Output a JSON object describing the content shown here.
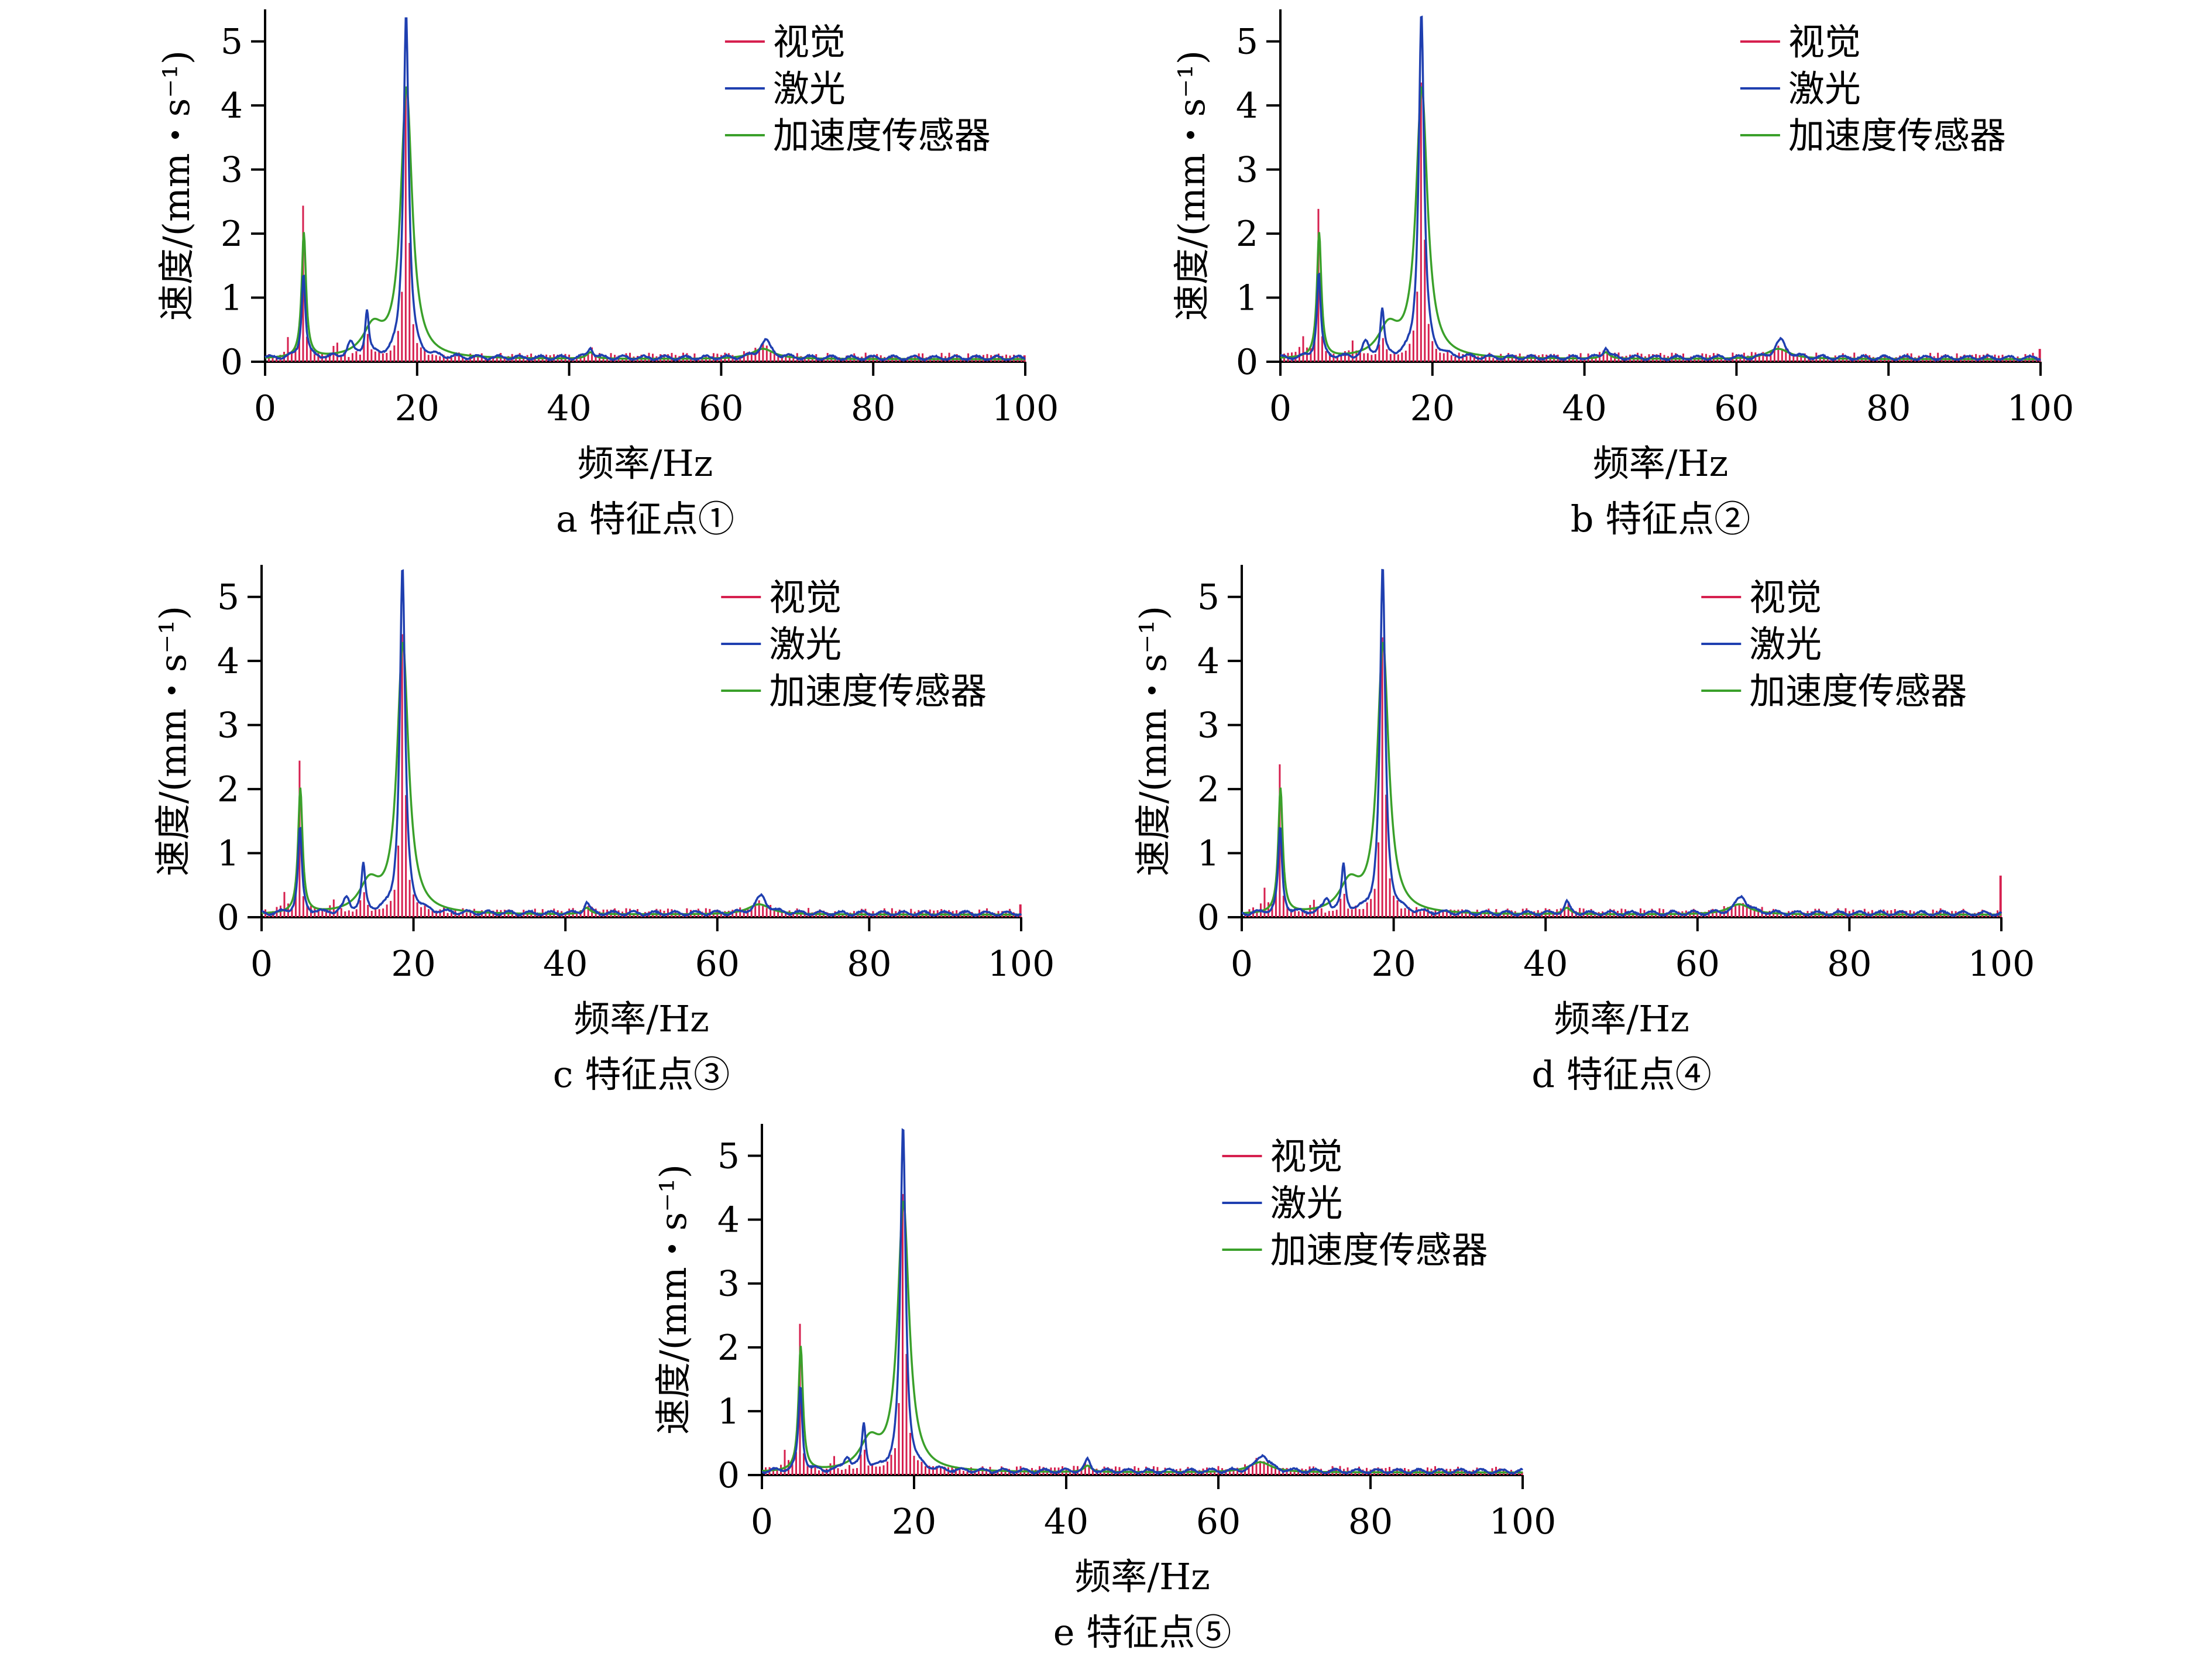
{
  "colors": {
    "vision": "#d6204f",
    "laser": "#1f3fb0",
    "accel": "#3aa02a",
    "axis": "#000000"
  },
  "chart_data": [
    {
      "id": "a",
      "caption": "a  特征点①",
      "type": "line",
      "xlabel": "频率/Hz",
      "ylabel": "速度/(mm・s⁻¹)",
      "xlim": [
        0,
        100
      ],
      "ylim": [
        0,
        5.5
      ],
      "xticks": [
        "0",
        "20",
        "40",
        "60",
        "80",
        "100"
      ],
      "yticks": [
        "0",
        "1",
        "2",
        "3",
        "4",
        "5"
      ],
      "legend_position": "top-right",
      "series": [
        {
          "name": "视觉"
        },
        {
          "name": "激光"
        },
        {
          "name": "加速度传感器"
        }
      ],
      "peaks": {
        "vision": 4.6,
        "laser": 5.4,
        "accel": 4.2,
        "end_bar": 0.1
      }
    },
    {
      "id": "b",
      "caption": "b  特征点②",
      "type": "line",
      "xlabel": "频率/Hz",
      "ylabel": "速度/(mm・s⁻¹)",
      "xlim": [
        0,
        100
      ],
      "ylim": [
        0,
        5.5
      ],
      "xticks": [
        "0",
        "20",
        "40",
        "60",
        "80",
        "100"
      ],
      "yticks": [
        "0",
        "1",
        "2",
        "3",
        "4",
        "5"
      ],
      "legend_position": "top-right",
      "series": [
        {
          "name": "视觉"
        },
        {
          "name": "激光"
        },
        {
          "name": "加速度传感器"
        }
      ],
      "peaks": {
        "vision": 4.7,
        "laser": 5.4,
        "accel": 4.2,
        "end_bar": 0.2
      }
    },
    {
      "id": "c",
      "caption": "c  特征点③",
      "type": "line",
      "xlabel": "频率/Hz",
      "ylabel": "速度/(mm・s⁻¹)",
      "xlim": [
        0,
        100
      ],
      "ylim": [
        0,
        5.5
      ],
      "xticks": [
        "0",
        "20",
        "40",
        "60",
        "80",
        "100"
      ],
      "yticks": [
        "0",
        "1",
        "2",
        "3",
        "4",
        "5"
      ],
      "legend_position": "top-right",
      "series": [
        {
          "name": "视觉"
        },
        {
          "name": "激光"
        },
        {
          "name": "加速度传感器"
        }
      ],
      "peaks": {
        "vision": 4.7,
        "laser": 5.4,
        "accel": 4.2,
        "end_bar": 0.2
      }
    },
    {
      "id": "d",
      "caption": "d  特征点④",
      "type": "line",
      "xlabel": "频率/Hz",
      "ylabel": "速度/(mm・s⁻¹)",
      "xlim": [
        0,
        100
      ],
      "ylim": [
        0,
        5.5
      ],
      "xticks": [
        "0",
        "20",
        "40",
        "60",
        "80",
        "100"
      ],
      "yticks": [
        "0",
        "1",
        "2",
        "3",
        "4",
        "5"
      ],
      "legend_position": "top-right",
      "series": [
        {
          "name": "视觉"
        },
        {
          "name": "激光"
        },
        {
          "name": "加速度传感器"
        }
      ],
      "peaks": {
        "vision": 4.7,
        "laser": 5.4,
        "accel": 4.2,
        "end_bar": 0.65
      }
    },
    {
      "id": "e",
      "caption": "e  特征点⑤",
      "type": "line",
      "xlabel": "频率/Hz",
      "ylabel": "速度/(mm・s⁻¹)",
      "xlim": [
        0,
        100
      ],
      "ylim": [
        0,
        5.5
      ],
      "xticks": [
        "0",
        "20",
        "40",
        "60",
        "80",
        "100"
      ],
      "yticks": [
        "0",
        "1",
        "2",
        "3",
        "4",
        "5"
      ],
      "legend_position": "top-right",
      "series": [
        {
          "name": "视觉"
        },
        {
          "name": "激光"
        },
        {
          "name": "加速度传感器"
        }
      ],
      "peaks": {
        "vision": 4.7,
        "laser": 5.4,
        "accel": 4.2,
        "end_bar": 0.05
      }
    }
  ]
}
